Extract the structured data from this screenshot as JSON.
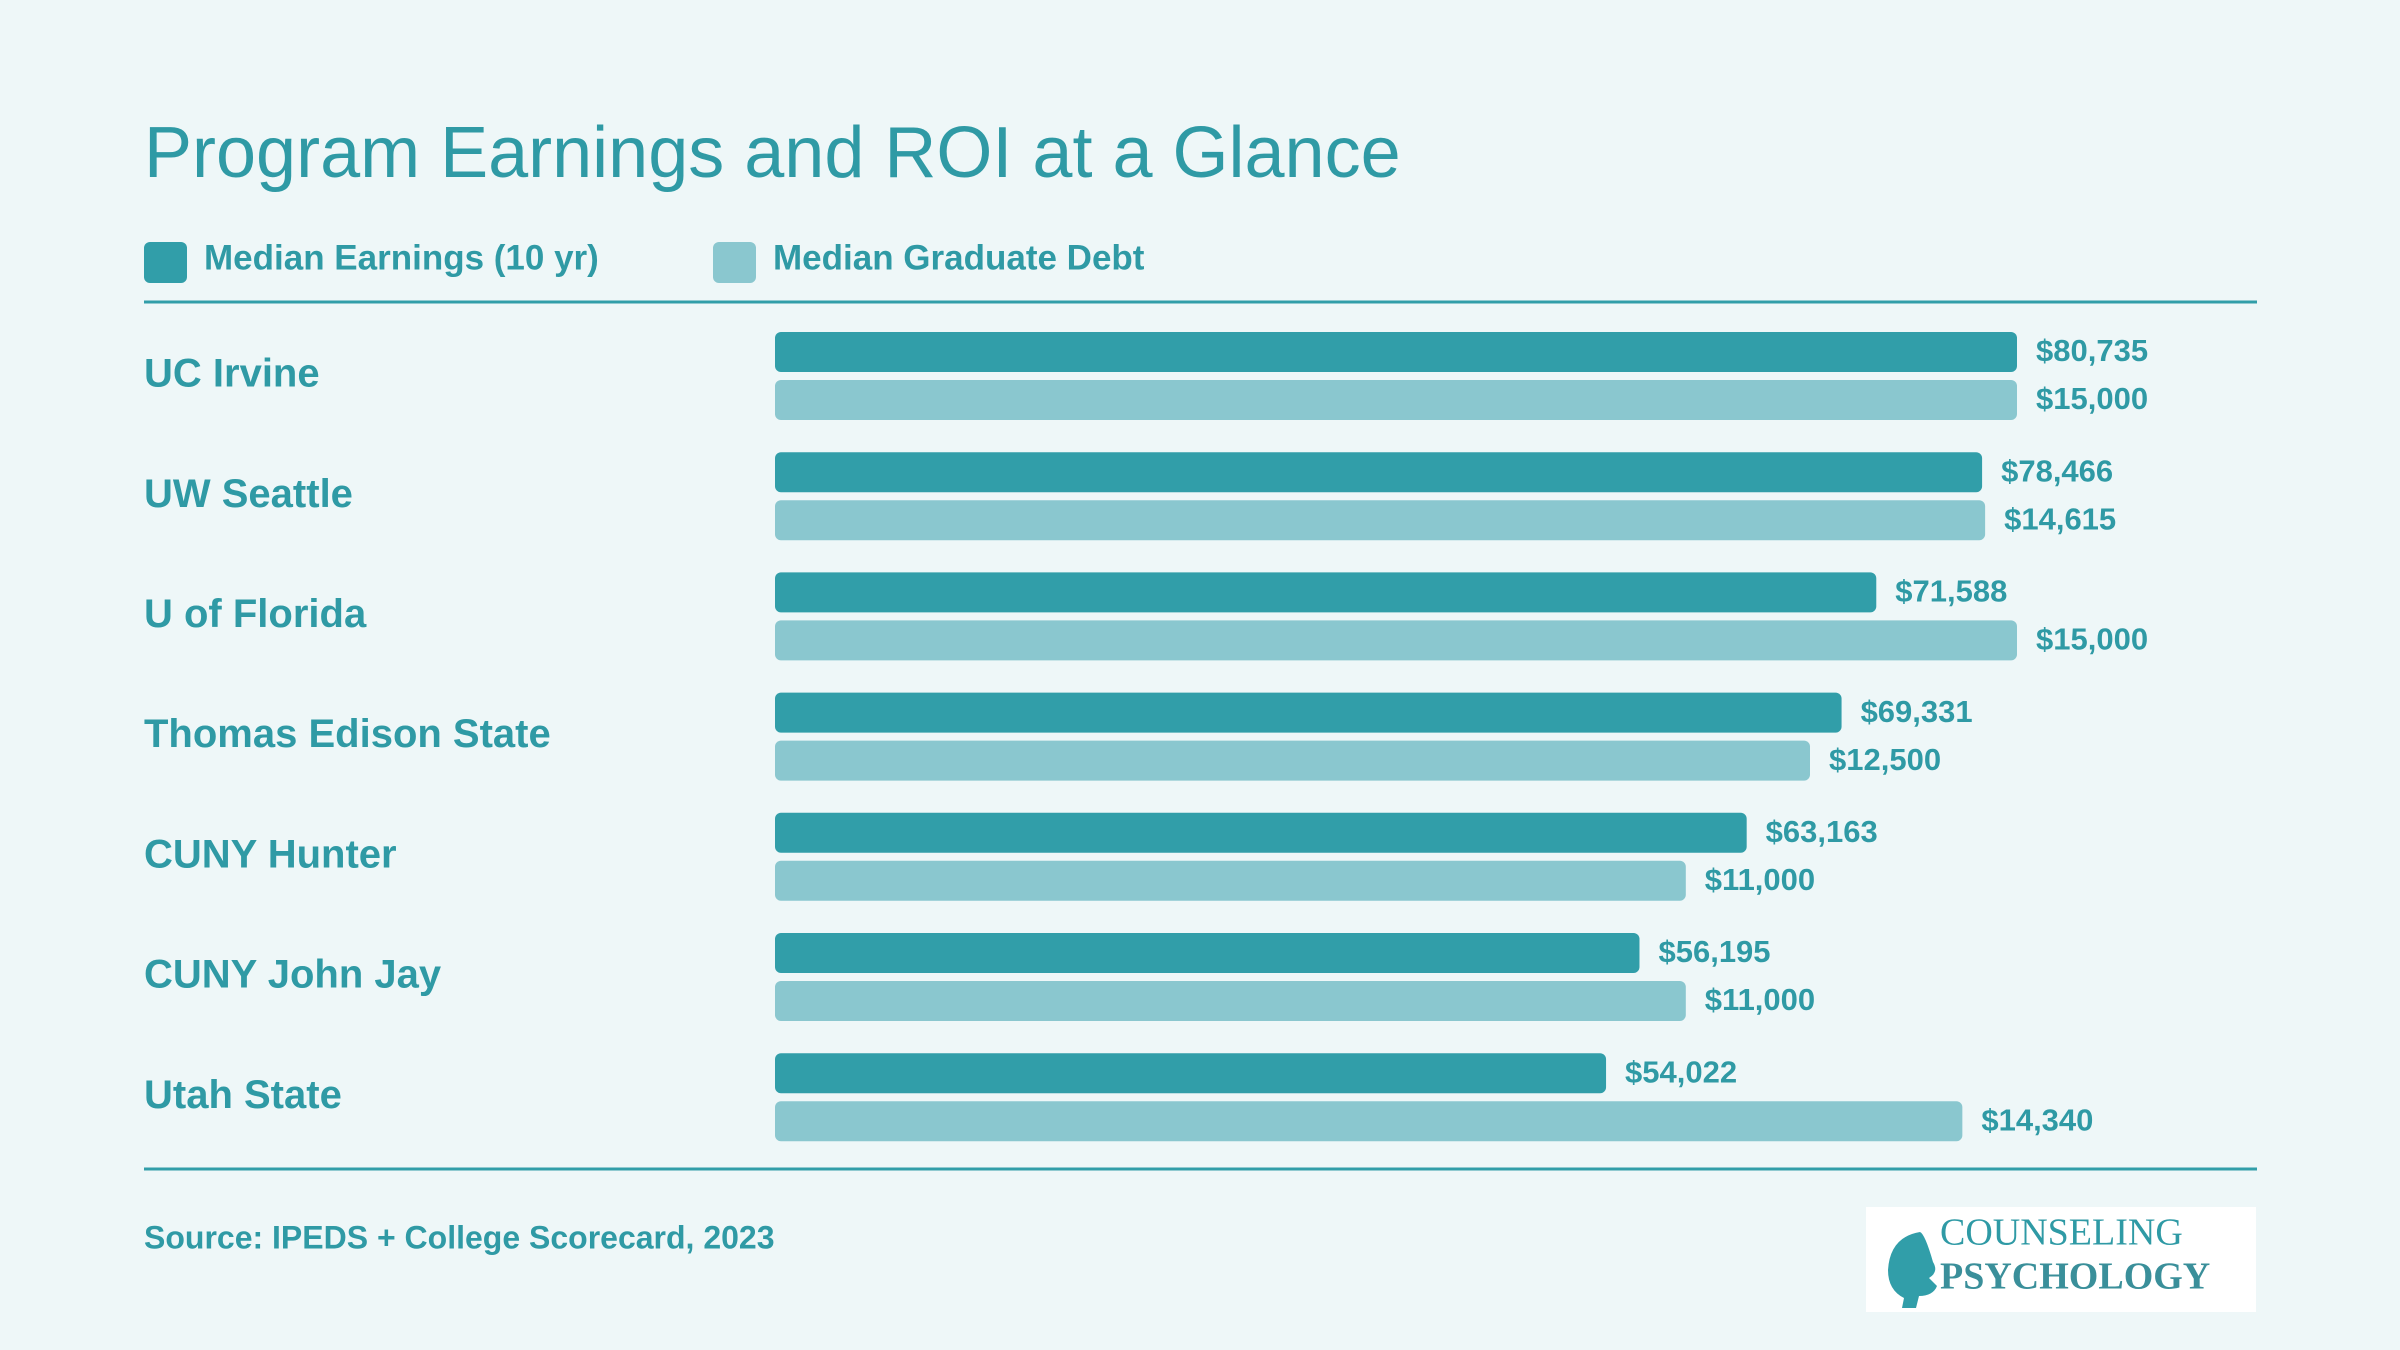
{
  "chart_data": {
    "type": "bar",
    "orientation": "horizontal",
    "title": "Program Earnings and ROI at a Glance",
    "legend": "top-left",
    "categories": [
      "UC Irvine",
      "UW Seattle",
      "U of Florida",
      "Thomas Edison State",
      "CUNY Hunter",
      "CUNY John Jay",
      "Utah State"
    ],
    "series": [
      {
        "name": "Median Earnings (10 yr)",
        "color": "#319ea9",
        "values": [
          80735,
          78466,
          71588,
          69331,
          63163,
          56195,
          54022
        ],
        "value_labels": [
          "$80,735",
          "$78,466",
          "$71,588",
          "$69,331",
          "$63,163",
          "$56,195",
          "$54,022"
        ]
      },
      {
        "name": "Median Graduate Debt",
        "color": "#8ac7cf",
        "values": [
          15000,
          14615,
          15000,
          12500,
          11000,
          11000,
          14340
        ],
        "value_labels": [
          "$15,000",
          "$14,615",
          "$15,000",
          "$12,500",
          "$11,000",
          "$11,000",
          "$14,340"
        ]
      }
    ],
    "source": "Source: IPEDS + College Scorecard, 2023"
  },
  "logo": {
    "line1": "COUNSELING",
    "line2": "PSYCHOLOGY"
  }
}
